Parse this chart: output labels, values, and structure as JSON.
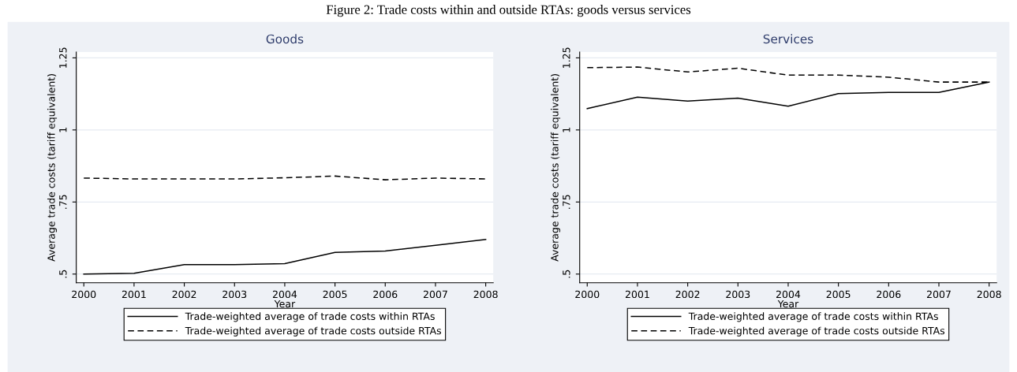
{
  "chart_data": [
    {
      "type": "line",
      "title": "Goods",
      "xlabel": "Year",
      "ylabel": "Average trade costs (tariff equivalent)",
      "annotations": [
        "Figure 2: Trade costs within and outside RTAs: goods versus services"
      ],
      "x": [
        2000,
        2001,
        2002,
        2003,
        2004,
        2005,
        2006,
        2007,
        2008
      ],
      "series": [
        {
          "name": "Trade-weighted average of trade costs within RTAs",
          "color": "#000000",
          "line_style": "solid",
          "values": [
            0.5,
            0.503,
            0.533,
            0.533,
            0.536,
            0.575,
            0.58,
            0.6,
            0.62
          ]
        },
        {
          "name": "Trade-weighted average of trade costs outside RTAs",
          "color": "#000000",
          "line_style": "dashed",
          "values": [
            0.833,
            0.83,
            0.83,
            0.83,
            0.834,
            0.84,
            0.827,
            0.833,
            0.83
          ]
        }
      ],
      "xlim": [
        1999.85,
        2008.15
      ],
      "xticks": [
        2000,
        2001,
        2002,
        2003,
        2004,
        2005,
        2006,
        2007,
        2008
      ],
      "ylim": [
        0.47,
        1.27
      ],
      "yticks": [
        {
          "value": 0.5,
          "label": ".5"
        },
        {
          "value": 0.75,
          "label": ".75"
        },
        {
          "value": 1,
          "label": "1"
        },
        {
          "value": 1.25,
          "label": "1.25"
        }
      ],
      "grid": "y",
      "legend": "bottom"
    },
    {
      "type": "line",
      "title": "Services",
      "xlabel": "Year",
      "ylabel": "Average trade costs (tariff equivalent)",
      "x": [
        2000,
        2001,
        2002,
        2003,
        2004,
        2005,
        2006,
        2007,
        2008
      ],
      "series": [
        {
          "name": "Trade-weighted average of trade costs within RTAs",
          "color": "#000000",
          "line_style": "solid",
          "values": [
            1.074,
            1.114,
            1.1,
            1.11,
            1.082,
            1.126,
            1.13,
            1.13,
            1.166
          ]
        },
        {
          "name": "Trade-weighted average of trade costs outside RTAs",
          "color": "#000000",
          "line_style": "dashed",
          "values": [
            1.216,
            1.218,
            1.201,
            1.214,
            1.19,
            1.19,
            1.183,
            1.166,
            1.166
          ]
        }
      ],
      "xlim": [
        1999.85,
        2008.15
      ],
      "xticks": [
        2000,
        2001,
        2002,
        2003,
        2004,
        2005,
        2006,
        2007,
        2008
      ],
      "ylim": [
        0.47,
        1.27
      ],
      "yticks": [
        {
          "value": 0.5,
          "label": ".5"
        },
        {
          "value": 0.75,
          "label": ".75"
        },
        {
          "value": 1,
          "label": "1"
        },
        {
          "value": 1.25,
          "label": "1.25"
        }
      ],
      "grid": "y",
      "legend": "bottom"
    }
  ]
}
